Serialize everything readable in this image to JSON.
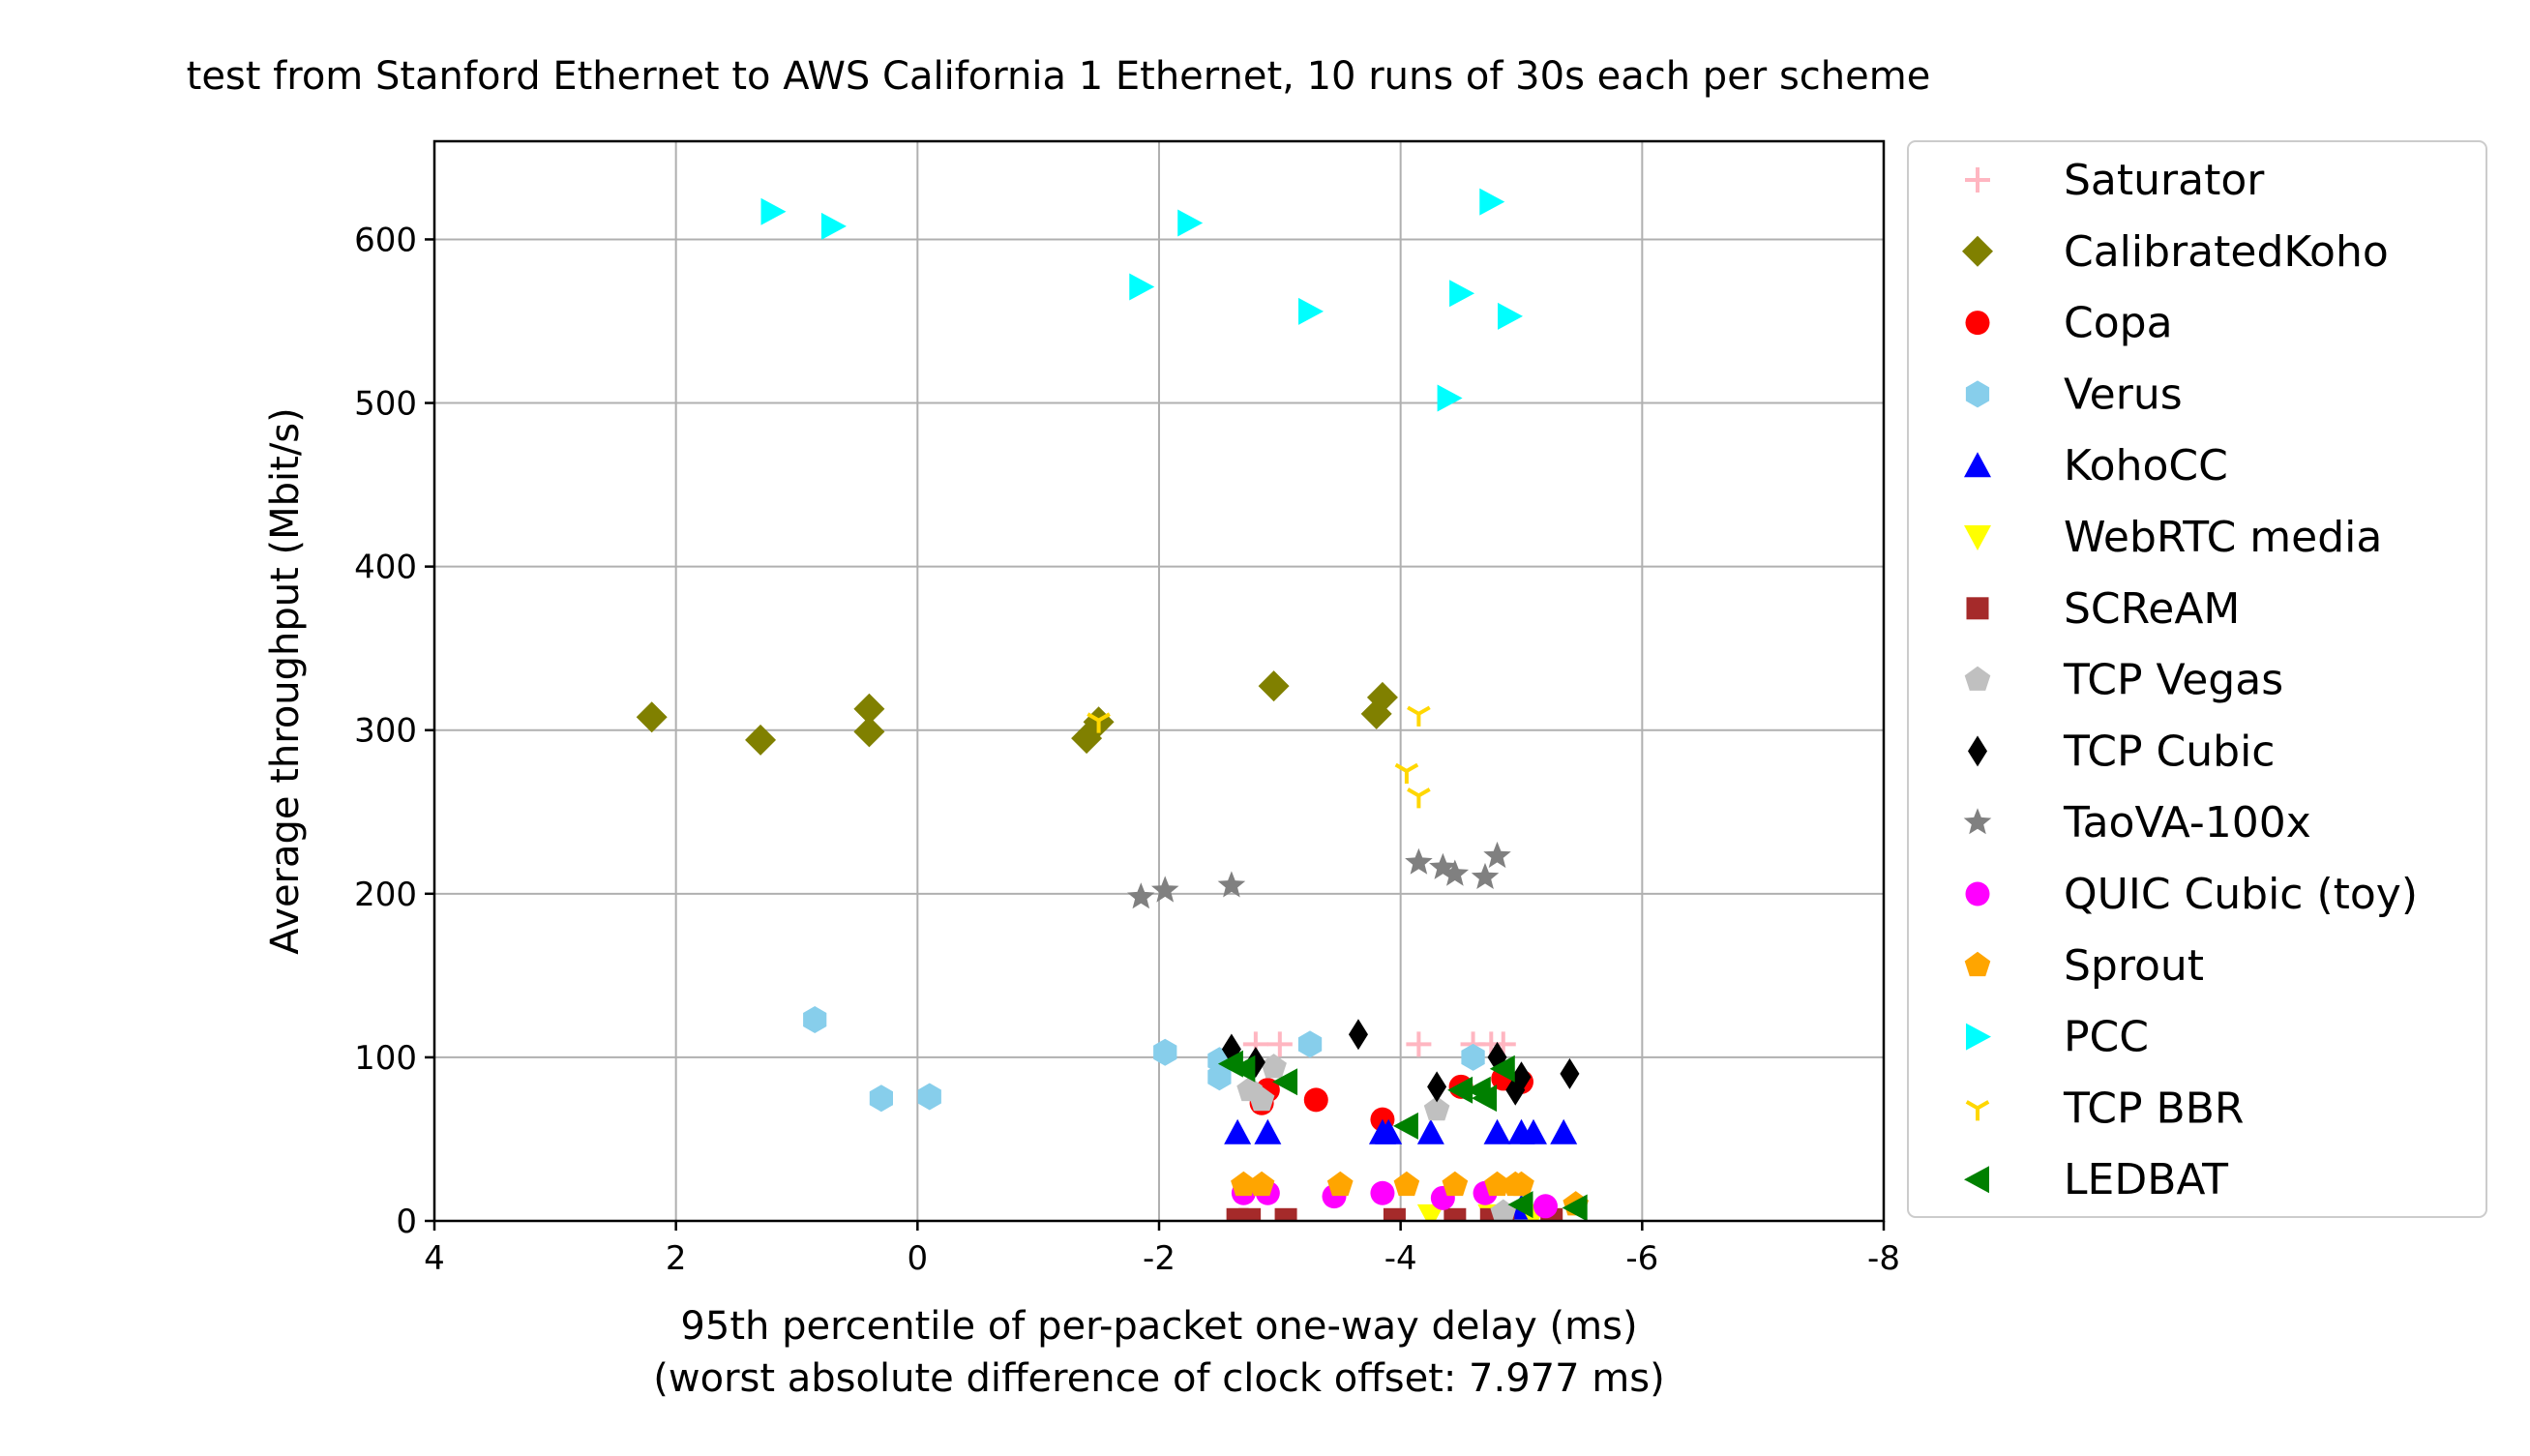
{
  "chart_data": {
    "type": "scatter",
    "title": "test from Stanford Ethernet to AWS California 1 Ethernet, 10 runs of 30s each per scheme",
    "xlabel": "95th percentile of per-packet one-way delay (ms)",
    "xlabel2": "(worst absolute difference of clock offset: 7.977 ms)",
    "ylabel": "Average throughput (Mbit/s)",
    "xlim": [
      4,
      -8
    ],
    "ylim": [
      0,
      660
    ],
    "xticks": [
      4,
      2,
      0,
      -2,
      -4,
      -6,
      -8
    ],
    "xtick_labels": [
      "4",
      "2",
      "0",
      "-2",
      "-4",
      "-6",
      "-8"
    ],
    "yticks": [
      0,
      100,
      200,
      300,
      400,
      500,
      600
    ],
    "ytick_labels": [
      "0",
      "100",
      "200",
      "300",
      "400",
      "500",
      "600"
    ],
    "grid": true,
    "legend_position": "outside-right",
    "series": [
      {
        "name": "Saturator",
        "color": "#ffb6c1",
        "marker": "plus",
        "points": [
          [
            -2.8,
            108
          ],
          [
            -3.0,
            108
          ],
          [
            -4.15,
            108
          ],
          [
            -4.6,
            108
          ],
          [
            -4.75,
            108
          ],
          [
            -4.85,
            108
          ]
        ]
      },
      {
        "name": "CalibratedKoho",
        "color": "#808000",
        "marker": "diamond",
        "points": [
          [
            2.2,
            308
          ],
          [
            1.3,
            294
          ],
          [
            0.4,
            313
          ],
          [
            0.4,
            299
          ],
          [
            -1.4,
            295
          ],
          [
            -1.5,
            305
          ],
          [
            -2.95,
            327
          ],
          [
            -3.8,
            310
          ],
          [
            -3.85,
            320
          ]
        ]
      },
      {
        "name": "Copa",
        "color": "#ff0000",
        "marker": "circle",
        "points": [
          [
            -2.85,
            72
          ],
          [
            -2.9,
            80
          ],
          [
            -3.3,
            74
          ],
          [
            -3.85,
            62
          ],
          [
            -4.5,
            82
          ],
          [
            -4.85,
            87
          ],
          [
            -5.0,
            85
          ]
        ]
      },
      {
        "name": "Verus",
        "color": "#87ceeb",
        "marker": "hexagon",
        "points": [
          [
            0.85,
            123
          ],
          [
            0.3,
            75
          ],
          [
            -0.1,
            76
          ],
          [
            -2.05,
            103
          ],
          [
            -2.5,
            88
          ],
          [
            -2.5,
            98
          ],
          [
            -3.25,
            108
          ],
          [
            -4.6,
            100
          ]
        ]
      },
      {
        "name": "KohoCC",
        "color": "#0000ff",
        "marker": "triangle-up",
        "points": [
          [
            -2.65,
            54
          ],
          [
            -2.9,
            54
          ],
          [
            -3.85,
            54
          ],
          [
            -3.9,
            54
          ],
          [
            -4.25,
            54
          ],
          [
            -4.8,
            54
          ],
          [
            -5.0,
            54
          ],
          [
            -5.1,
            54
          ],
          [
            -5.35,
            54
          ],
          [
            -5.0,
            8
          ]
        ]
      },
      {
        "name": "WebRTC media",
        "color": "#ffff00",
        "marker": "triangle-down",
        "points": [
          [
            -4.25,
            3
          ],
          [
            -4.75,
            3
          ],
          [
            -5.1,
            3
          ]
        ]
      },
      {
        "name": "SCReAM",
        "color": "#a52a2a",
        "marker": "square",
        "points": [
          [
            -2.65,
            1
          ],
          [
            -2.75,
            1
          ],
          [
            -3.05,
            1
          ],
          [
            -3.95,
            1
          ],
          [
            -4.45,
            1
          ],
          [
            -4.75,
            1
          ],
          [
            -4.85,
            1
          ],
          [
            -5.25,
            1
          ]
        ]
      },
      {
        "name": "TCP Vegas",
        "color": "#c0c0c0",
        "marker": "pentagon",
        "points": [
          [
            -2.75,
            80
          ],
          [
            -2.85,
            74
          ],
          [
            -2.95,
            94
          ],
          [
            -4.3,
            68
          ],
          [
            -4.85,
            5
          ]
        ]
      },
      {
        "name": "TCP Cubic",
        "color": "#000000",
        "marker": "thin_diamond",
        "points": [
          [
            -2.6,
            105
          ],
          [
            -2.8,
            97
          ],
          [
            -3.65,
            114
          ],
          [
            -4.3,
            82
          ],
          [
            -4.8,
            100
          ],
          [
            -4.95,
            80
          ],
          [
            -5.0,
            88
          ],
          [
            -5.4,
            90
          ]
        ]
      },
      {
        "name": "TaoVA-100x",
        "color": "#808080",
        "marker": "star",
        "points": [
          [
            -1.85,
            198
          ],
          [
            -2.05,
            202
          ],
          [
            -2.6,
            205
          ],
          [
            -4.15,
            219
          ],
          [
            -4.35,
            216
          ],
          [
            -4.45,
            212
          ],
          [
            -4.7,
            210
          ],
          [
            -4.8,
            223
          ]
        ]
      },
      {
        "name": "QUIC Cubic (toy)",
        "color": "#ff00ff",
        "marker": "circle",
        "points": [
          [
            -2.7,
            17
          ],
          [
            -2.9,
            17
          ],
          [
            -3.45,
            15
          ],
          [
            -3.85,
            17
          ],
          [
            -4.35,
            14
          ],
          [
            -4.7,
            17
          ],
          [
            -5.2,
            9
          ]
        ]
      },
      {
        "name": "Sprout",
        "color": "#ffa500",
        "marker": "pentagon",
        "points": [
          [
            -2.7,
            22
          ],
          [
            -2.85,
            22
          ],
          [
            -3.5,
            22
          ],
          [
            -4.05,
            22
          ],
          [
            -4.45,
            22
          ],
          [
            -4.8,
            22
          ],
          [
            -4.95,
            22
          ],
          [
            -5.0,
            22
          ],
          [
            -5.45,
            10
          ]
        ]
      },
      {
        "name": "PCC",
        "color": "#00ffff",
        "marker": "triangle-right",
        "points": [
          [
            1.2,
            617
          ],
          [
            0.7,
            608
          ],
          [
            -1.85,
            571
          ],
          [
            -2.25,
            610
          ],
          [
            -3.25,
            556
          ],
          [
            -4.4,
            503
          ],
          [
            -4.5,
            567
          ],
          [
            -4.75,
            623
          ],
          [
            -4.9,
            553
          ]
        ]
      },
      {
        "name": "TCP BBR",
        "color": "#ffd700",
        "marker": "tri_down",
        "points": [
          [
            -1.5,
            306
          ],
          [
            -4.15,
            310
          ],
          [
            -4.05,
            275
          ],
          [
            -4.15,
            260
          ]
        ]
      },
      {
        "name": "LEDBAT",
        "color": "#008000",
        "marker": "triangle-left",
        "points": [
          [
            -2.6,
            96
          ],
          [
            -2.7,
            93
          ],
          [
            -3.05,
            85
          ],
          [
            -4.05,
            58
          ],
          [
            -4.5,
            80
          ],
          [
            -4.65,
            80
          ],
          [
            -4.7,
            75
          ],
          [
            -4.85,
            93
          ],
          [
            -5.0,
            10
          ],
          [
            -5.45,
            8
          ]
        ]
      }
    ]
  }
}
